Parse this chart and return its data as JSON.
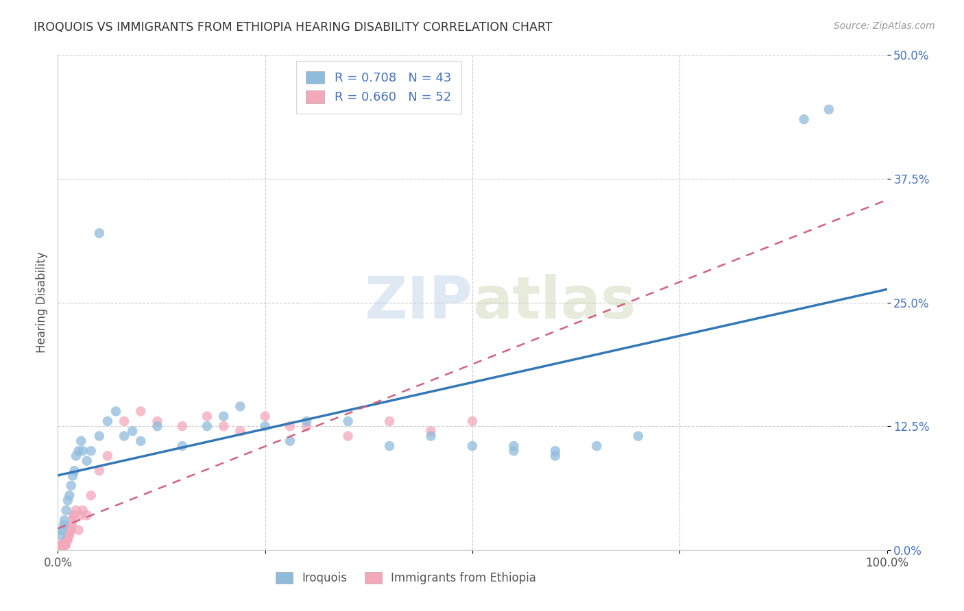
{
  "title": "IROQUOIS VS IMMIGRANTS FROM ETHIOPIA HEARING DISABILITY CORRELATION CHART",
  "source": "Source: ZipAtlas.com",
  "ylabel": "Hearing Disability",
  "ytick_vals": [
    0.0,
    12.5,
    25.0,
    37.5,
    50.0
  ],
  "xlim": [
    0,
    100
  ],
  "ylim": [
    0,
    50
  ],
  "legend_label1": "Iroquois",
  "legend_label2": "Immigrants from Ethiopia",
  "R1": 0.708,
  "N1": 43,
  "R2": 0.66,
  "N2": 52,
  "color_blue": "#8fbcdb",
  "color_pink": "#f4a8bc",
  "color_blue_line": "#3478b5",
  "color_pink_line": "#d46080",
  "blue_x": [
    0.3,
    0.5,
    0.7,
    0.8,
    1.0,
    1.2,
    1.4,
    1.6,
    1.8,
    2.0,
    2.2,
    2.5,
    2.8,
    3.0,
    3.5,
    4.0,
    5.0,
    6.0,
    7.0,
    8.0,
    9.0,
    10.0,
    12.0,
    15.0,
    18.0,
    20.0,
    22.0,
    25.0,
    28.0,
    30.0,
    35.0,
    40.0,
    45.0,
    50.0,
    55.0,
    60.0,
    65.0,
    70.0,
    5.0,
    90.0,
    93.0,
    55.0,
    60.0
  ],
  "blue_y": [
    1.5,
    2.0,
    2.5,
    3.0,
    4.0,
    5.0,
    5.5,
    6.5,
    7.5,
    8.0,
    9.5,
    10.0,
    11.0,
    10.0,
    9.0,
    10.0,
    11.5,
    13.0,
    14.0,
    11.5,
    12.0,
    11.0,
    12.5,
    10.5,
    12.5,
    13.5,
    14.5,
    12.5,
    11.0,
    13.0,
    13.0,
    10.5,
    11.5,
    10.5,
    10.0,
    9.5,
    10.5,
    11.5,
    32.0,
    43.5,
    44.5,
    10.5,
    10.0
  ],
  "pink_x": [
    0.05,
    0.1,
    0.15,
    0.2,
    0.25,
    0.3,
    0.35,
    0.4,
    0.45,
    0.5,
    0.55,
    0.6,
    0.65,
    0.7,
    0.75,
    0.8,
    0.85,
    0.9,
    0.95,
    1.0,
    1.1,
    1.2,
    1.3,
    1.4,
    1.5,
    1.6,
    1.7,
    1.8,
    1.9,
    2.0,
    2.2,
    2.5,
    2.8,
    3.0,
    3.5,
    4.0,
    5.0,
    6.0,
    8.0,
    10.0,
    12.0,
    15.0,
    18.0,
    20.0,
    22.0,
    25.0,
    28.0,
    30.0,
    35.0,
    40.0,
    45.0,
    50.0
  ],
  "pink_y": [
    0.3,
    0.3,
    0.3,
    0.4,
    0.4,
    0.4,
    0.5,
    0.5,
    0.5,
    0.5,
    0.5,
    0.5,
    0.5,
    0.5,
    0.5,
    0.5,
    0.5,
    0.5,
    0.5,
    1.0,
    1.0,
    1.0,
    1.5,
    1.5,
    2.0,
    2.0,
    2.5,
    3.0,
    3.5,
    3.5,
    4.0,
    2.0,
    3.5,
    4.0,
    3.5,
    5.5,
    8.0,
    9.5,
    13.0,
    14.0,
    13.0,
    12.5,
    13.5,
    12.5,
    12.0,
    13.5,
    12.5,
    12.5,
    11.5,
    13.0,
    12.0,
    13.0
  ]
}
